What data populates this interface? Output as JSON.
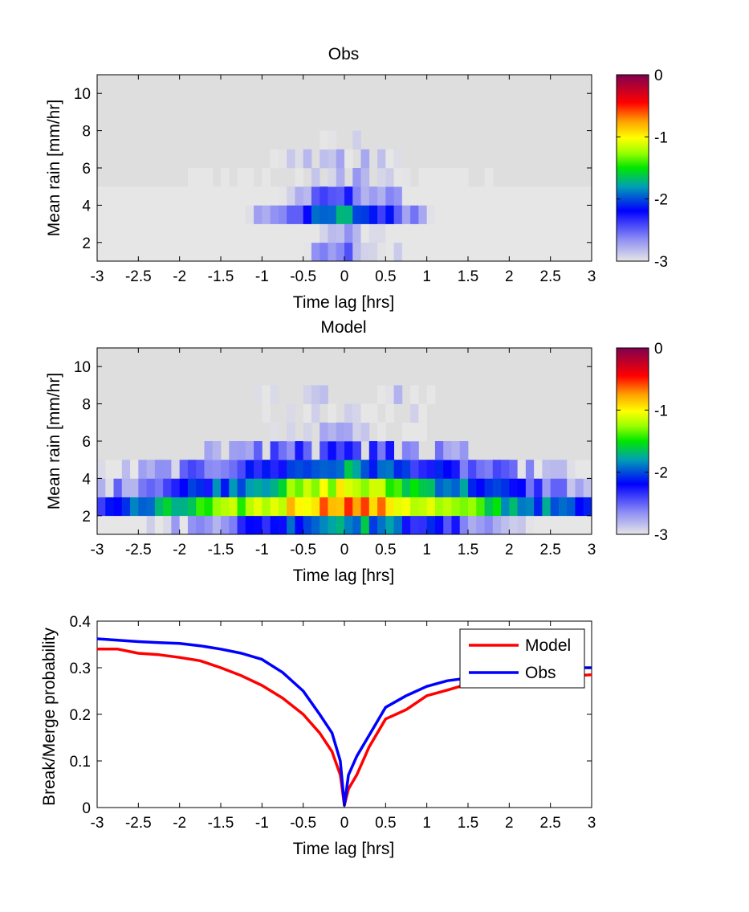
{
  "chart_data": [
    {
      "type": "heatmap",
      "title": "Obs",
      "xlabel": "Time lag [hrs]",
      "ylabel": "Mean rain [mm/hr]",
      "xlim": [
        -3,
        3
      ],
      "ylim": [
        1,
        11
      ],
      "xticks": [
        "-3",
        "-2.5",
        "-2",
        "-1.5",
        "-1",
        "-0.5",
        "0",
        "0.5",
        "1",
        "1.5",
        "2",
        "2.5",
        "3"
      ],
      "yticks": [
        "2",
        "4",
        "6",
        "8",
        "10"
      ],
      "background": "#dedede",
      "colorbar": {
        "min": -3,
        "max": 0,
        "ticks": [
          "0",
          "-1",
          "-2",
          "-3"
        ]
      },
      "row_bins_mm_hr": [
        [
          1,
          2
        ],
        [
          2,
          3
        ],
        [
          3,
          4
        ],
        [
          4,
          5
        ],
        [
          5,
          6
        ],
        [
          6,
          7
        ],
        [
          7,
          8
        ]
      ],
      "profiles": [
        {
          "center": -2.0,
          "peak": -0.55,
          "decay": 0.85,
          "extent": 3.0
        },
        {
          "center": -2.6,
          "peak": -0.15,
          "decay": 0.95,
          "extent": 3.0
        },
        {
          "center": -1.35,
          "peak": -0.45,
          "decay": 0.95,
          "extent": 3.0
        },
        {
          "center": -2.1,
          "peak": -0.3,
          "decay": 0.75,
          "extent": 3.0
        },
        {
          "center": -2.75,
          "peak": 0,
          "decay": 0.5,
          "extent": 1.85
        },
        {
          "center": -2.85,
          "peak": -0.05,
          "decay": 0.3,
          "extent": 0.95
        },
        {
          "center": -2.95,
          "peak": 0,
          "decay": 0,
          "extent": 0.25
        }
      ]
    },
    {
      "type": "heatmap",
      "title": "Model",
      "xlabel": "Time lag [hrs]",
      "ylabel": "Mean rain [mm/hr]",
      "xlim": [
        -3,
        3
      ],
      "ylim": [
        1,
        11
      ],
      "xticks": [
        "-3",
        "-2.5",
        "-2",
        "-1.5",
        "-1",
        "-0.5",
        "0",
        "0.5",
        "1",
        "1.5",
        "2",
        "2.5",
        "3"
      ],
      "yticks": [
        "2",
        "4",
        "6",
        "8",
        "10"
      ],
      "background": "#dedede",
      "colorbar": {
        "min": -3,
        "max": 0,
        "ticks": [
          "0",
          "-1",
          "-2",
          "-3"
        ]
      },
      "row_bins_mm_hr": [
        [
          1,
          2
        ],
        [
          2,
          3
        ],
        [
          3,
          4
        ],
        [
          4,
          5
        ],
        [
          5,
          6
        ],
        [
          6,
          7
        ],
        [
          7,
          8
        ],
        [
          8,
          9
        ]
      ],
      "profiles": [
        {
          "center": -1.55,
          "peak": -0.1,
          "decay": 0.6,
          "extent": 3.0
        },
        {
          "center": -0.7,
          "peak": 0.1,
          "decay": 0.55,
          "extent": 3.0
        },
        {
          "center": -1.05,
          "peak": 0,
          "decay": 0.6,
          "extent": 3.0
        },
        {
          "center": -1.5,
          "peak": -0.3,
          "decay": 0.45,
          "extent": 3.0
        },
        {
          "center": -2.0,
          "peak": -0.2,
          "decay": 0.45,
          "extent": 1.7
        },
        {
          "center": -2.7,
          "peak": -0.2,
          "decay": 0.2,
          "extent": 1.0
        },
        {
          "center": -2.95,
          "peak": 0,
          "decay": 0,
          "extent": 1.1
        },
        {
          "center": -2.95,
          "peak": 0,
          "decay": 0,
          "extent": 1.1
        }
      ]
    },
    {
      "type": "line",
      "xlabel": "Time lag [hrs]",
      "ylabel": "Break/Merge probability",
      "xlim": [
        -3,
        3
      ],
      "ylim": [
        0,
        0.4
      ],
      "xticks": [
        "-3",
        "-2.5",
        "-2",
        "-1.5",
        "-1",
        "-0.5",
        "0",
        "0.5",
        "1",
        "1.5",
        "2",
        "2.5",
        "3"
      ],
      "yticks": [
        "0",
        "0.1",
        "0.2",
        "0.3",
        "0.4"
      ],
      "legend_position": "top-right",
      "series": [
        {
          "name": "Model",
          "color": "#ff0000",
          "x": [
            -3,
            -2.75,
            -2.5,
            -2.25,
            -2,
            -1.75,
            -1.5,
            -1.25,
            -1,
            -0.75,
            -0.5,
            -0.3,
            -0.15,
            -0.05,
            0,
            0.05,
            0.15,
            0.3,
            0.5,
            0.75,
            1,
            1.25,
            1.5,
            1.75,
            2,
            2.5,
            3
          ],
          "y": [
            0.34,
            0.34,
            0.331,
            0.328,
            0.322,
            0.315,
            0.3,
            0.283,
            0.262,
            0.235,
            0.2,
            0.16,
            0.12,
            0.07,
            0.005,
            0.04,
            0.07,
            0.13,
            0.19,
            0.21,
            0.24,
            0.252,
            0.265,
            0.268,
            0.27,
            0.28,
            0.285
          ]
        },
        {
          "name": "Obs",
          "color": "#0000ff",
          "x": [
            -3,
            -2.75,
            -2.5,
            -2.25,
            -2,
            -1.75,
            -1.5,
            -1.25,
            -1,
            -0.75,
            -0.5,
            -0.3,
            -0.15,
            -0.05,
            0,
            0.05,
            0.15,
            0.3,
            0.5,
            0.75,
            1,
            1.25,
            1.5,
            1.75,
            2,
            2.5,
            3
          ],
          "y": [
            0.362,
            0.359,
            0.356,
            0.354,
            0.352,
            0.347,
            0.34,
            0.331,
            0.318,
            0.29,
            0.25,
            0.2,
            0.16,
            0.1,
            0.005,
            0.07,
            0.11,
            0.155,
            0.215,
            0.24,
            0.26,
            0.272,
            0.278,
            0.283,
            0.29,
            0.3,
            0.3
          ]
        }
      ]
    }
  ]
}
